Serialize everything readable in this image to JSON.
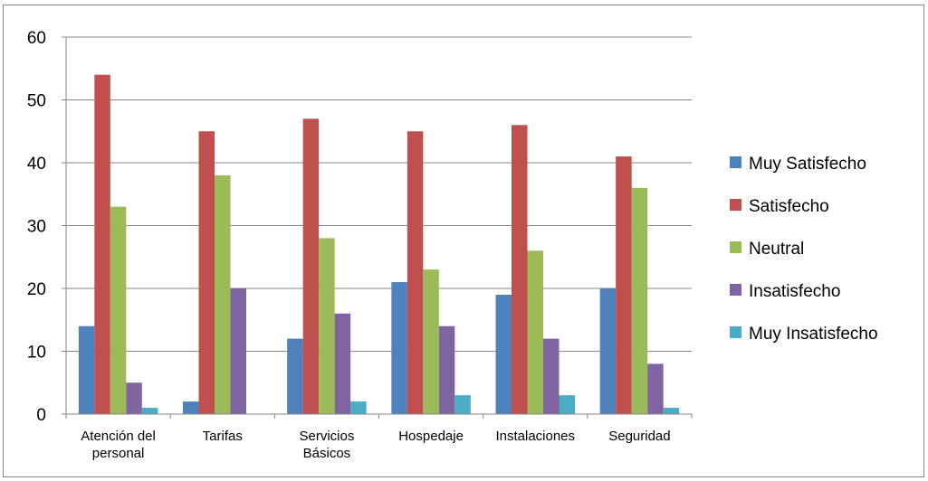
{
  "chart_data": {
    "type": "bar",
    "categories": [
      [
        "Atención del",
        "personal"
      ],
      [
        "Tarifas"
      ],
      [
        "Servicios",
        "Básicos"
      ],
      [
        "Hospedaje"
      ],
      [
        "Instalaciones"
      ],
      [
        "Seguridad"
      ]
    ],
    "series": [
      {
        "name": "Muy Satisfecho",
        "color": "#4f81bd",
        "values": [
          14,
          2,
          12,
          21,
          19,
          20
        ]
      },
      {
        "name": "Satisfecho",
        "color": "#c0504d",
        "values": [
          54,
          45,
          47,
          45,
          46,
          41
        ]
      },
      {
        "name": "Neutral",
        "color": "#9bbb59",
        "values": [
          33,
          38,
          28,
          23,
          26,
          36
        ]
      },
      {
        "name": "Insatisfecho",
        "color": "#8064a2",
        "values": [
          5,
          20,
          16,
          14,
          12,
          8
        ]
      },
      {
        "name": "Muy Insatisfecho",
        "color": "#4bacc6",
        "values": [
          1,
          0,
          2,
          3,
          3,
          1
        ]
      }
    ],
    "ylim": [
      0,
      60
    ],
    "yticks": [
      0,
      10,
      20,
      30,
      40,
      50,
      60
    ],
    "grid": true,
    "legend": "right",
    "title": "",
    "xlabel": "",
    "ylabel": ""
  }
}
